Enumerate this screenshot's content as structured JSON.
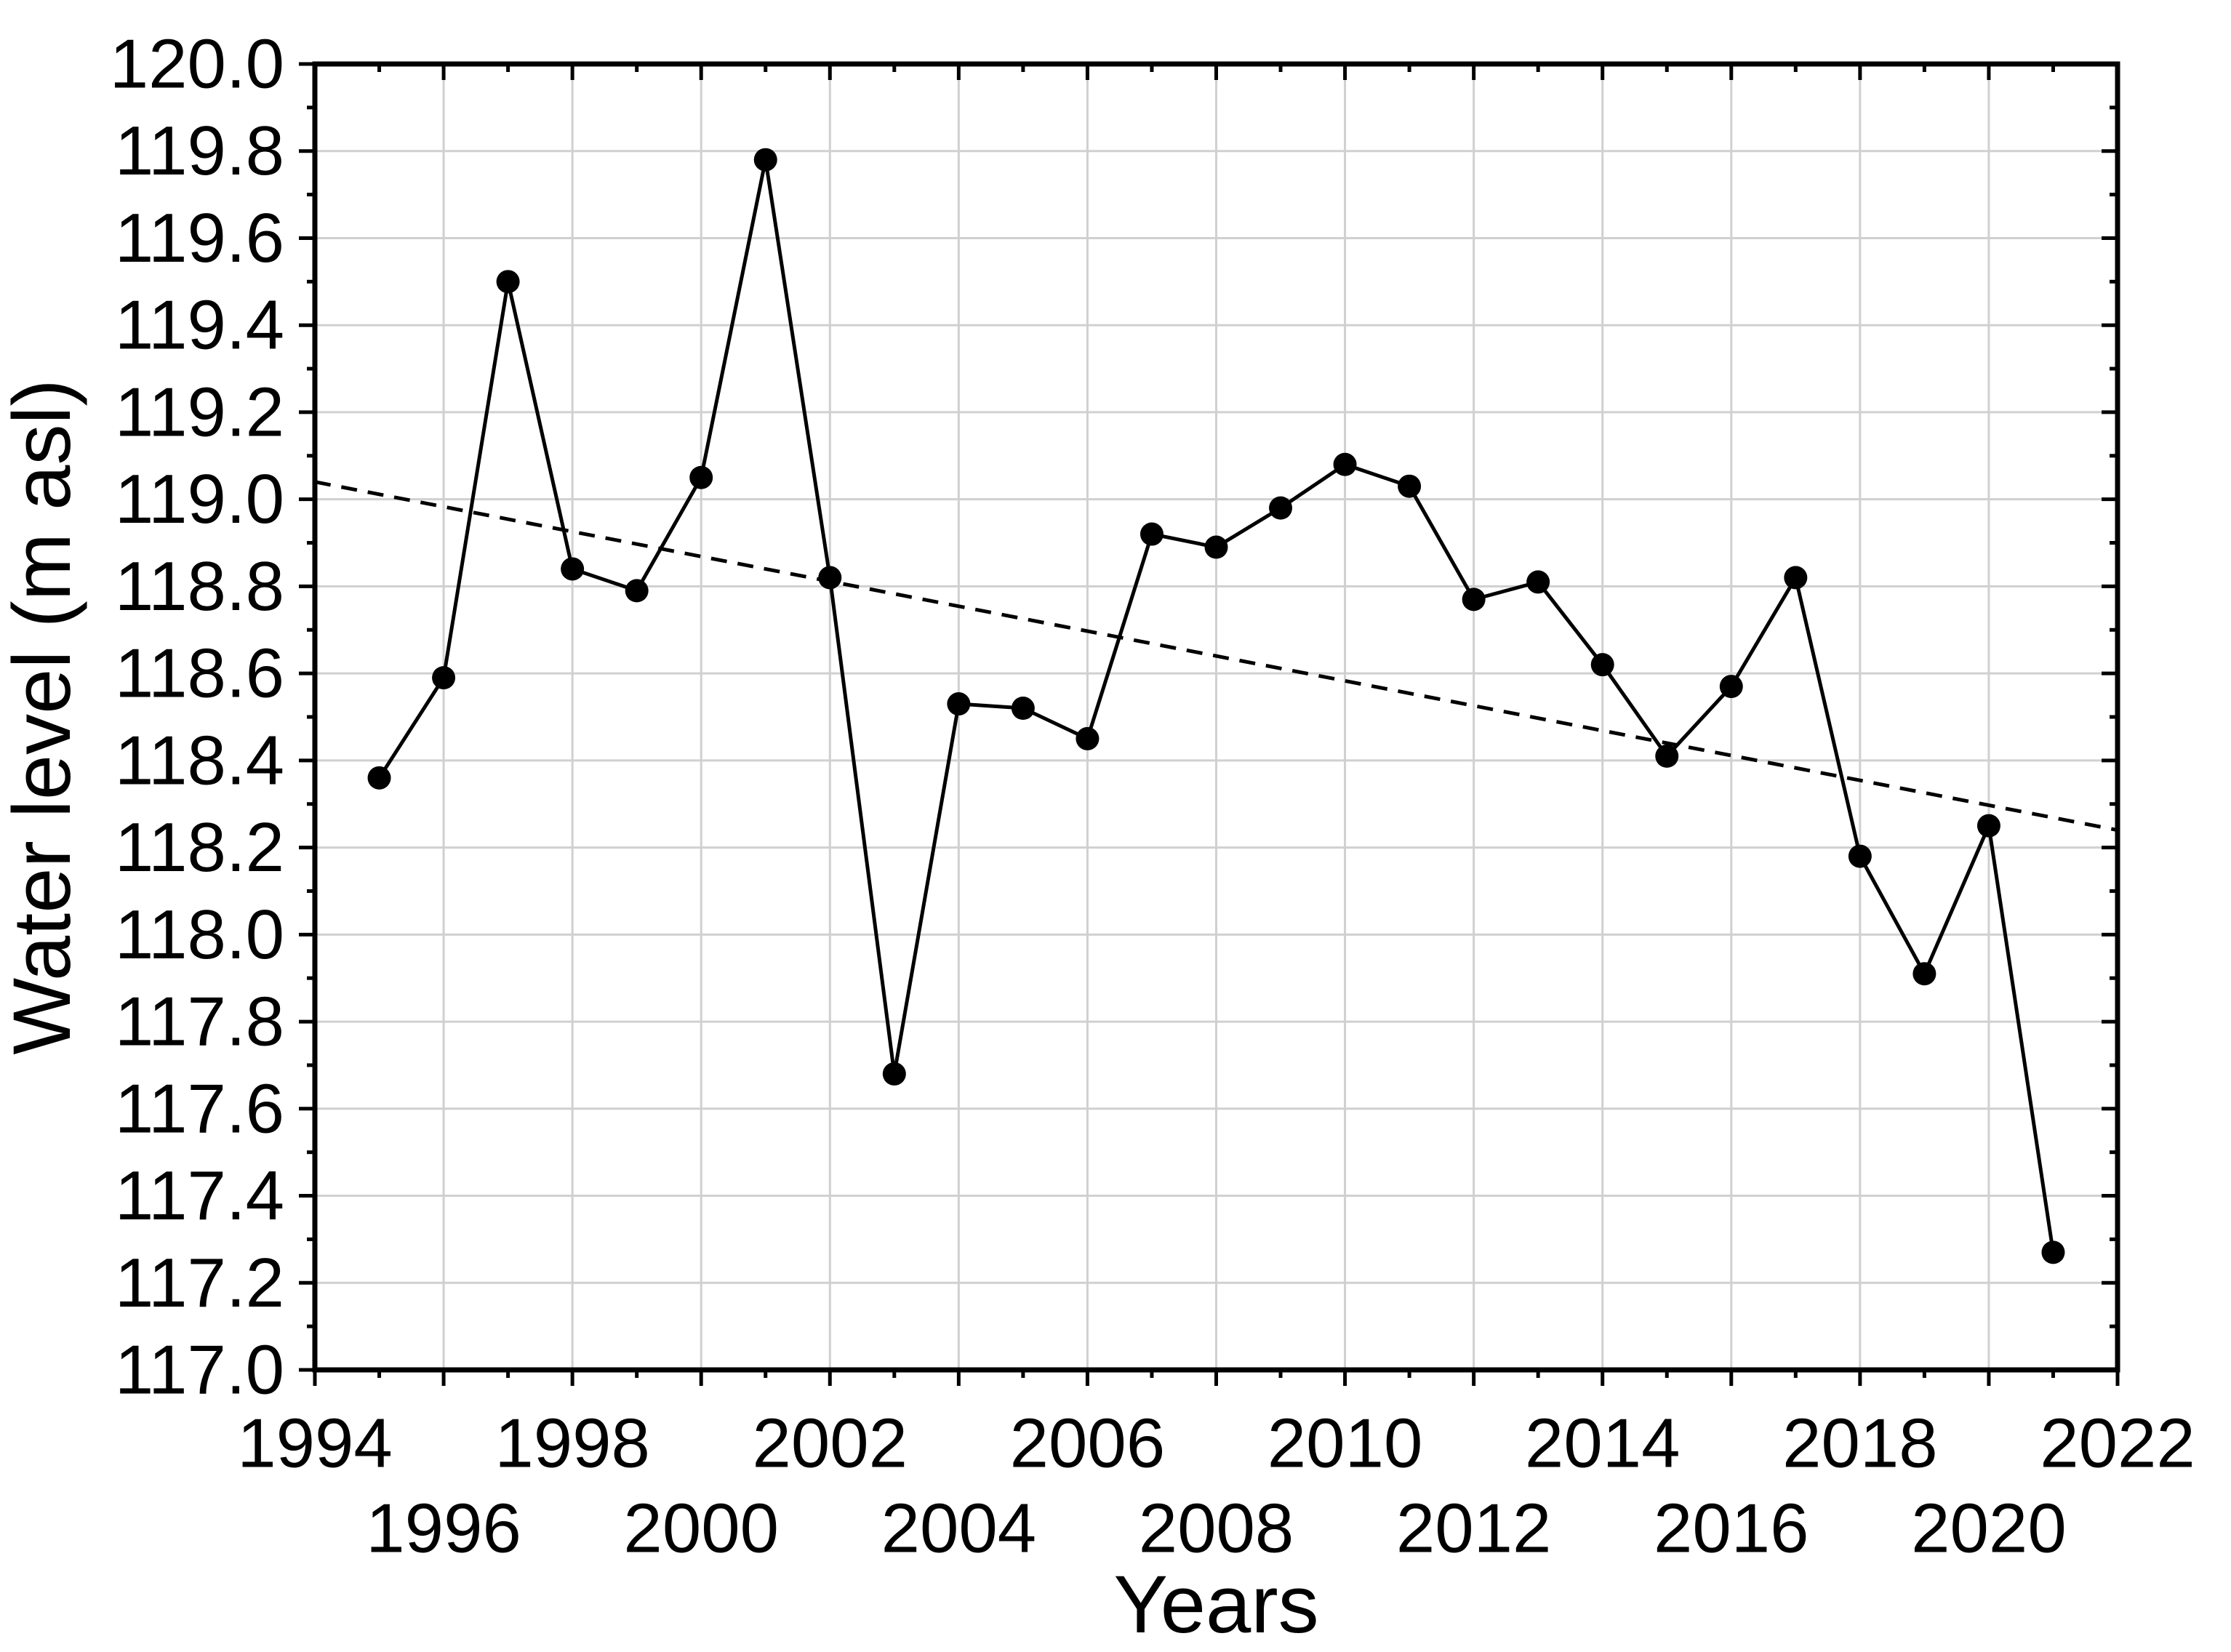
{
  "chart_data": {
    "type": "line",
    "title": "",
    "xlabel": "Years",
    "ylabel": "Water level (m asl)",
    "xlim": [
      1994,
      2022
    ],
    "ylim": [
      117.0,
      120.0
    ],
    "grid": true,
    "legend_position": "none",
    "x_major_tick_step": 2,
    "x_minor_tick_step": 1,
    "y_major_tick_step": 0.2,
    "y_minor_tick_step": 0.1,
    "x": [
      1995,
      1996,
      1997,
      1998,
      1999,
      2000,
      2001,
      2002,
      2003,
      2004,
      2005,
      2006,
      2007,
      2008,
      2009,
      2010,
      2011,
      2012,
      2013,
      2014,
      2015,
      2016,
      2017,
      2018,
      2019,
      2020,
      2021
    ],
    "series": [
      {
        "marker": "filled-circle",
        "line_style": "solid",
        "values": [
          118.36,
          118.59,
          119.5,
          118.84,
          118.79,
          119.05,
          119.78,
          118.82,
          117.68,
          118.53,
          118.52,
          118.45,
          118.92,
          118.89,
          118.98,
          119.08,
          119.03,
          118.77,
          118.81,
          118.62,
          118.41,
          118.57,
          118.82,
          118.18,
          117.91,
          118.25,
          117.27
        ]
      }
    ],
    "trend_line": {
      "line_style": "dashed",
      "x_start": 1994,
      "y_start": 119.04,
      "x_end": 2022,
      "y_end": 118.24
    },
    "y_tick_labels": [
      "120.0",
      "119.8",
      "119.6",
      "119.4",
      "119.2",
      "119.0",
      "118.8",
      "118.6",
      "118.4",
      "118.2",
      "118.0",
      "117.8",
      "117.6",
      "117.4",
      "117.2",
      "117.0"
    ],
    "x_tick_labels_row1": [
      "1994",
      "1998",
      "2002",
      "2006",
      "2010",
      "2014",
      "2018",
      "2022"
    ],
    "x_tick_labels_row2": [
      "1996",
      "2000",
      "2004",
      "2008",
      "2012",
      "2016",
      "2020"
    ],
    "colors": {
      "series": "#000000",
      "trend": "#000000",
      "grid": "#d0d0d0",
      "axis": "#000000",
      "text": "#000000",
      "background": "#ffffff"
    }
  }
}
